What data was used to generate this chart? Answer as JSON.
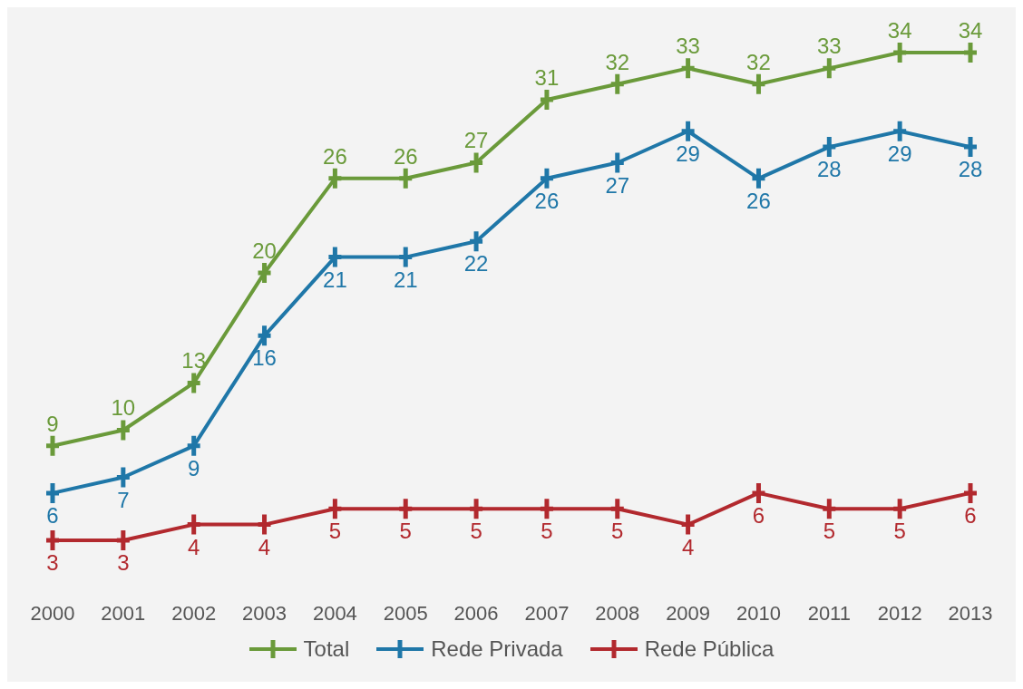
{
  "chart_data": {
    "type": "line",
    "categories": [
      "2000",
      "2001",
      "2002",
      "2003",
      "2004",
      "2005",
      "2006",
      "2007",
      "2008",
      "2009",
      "2010",
      "2011",
      "2012",
      "2013"
    ],
    "series": [
      {
        "name": "Total",
        "color": "#6a9a3a",
        "values": [
          9,
          10,
          13,
          20,
          26,
          26,
          27,
          31,
          32,
          33,
          32,
          33,
          34,
          34
        ]
      },
      {
        "name": "Rede Privada",
        "color": "#1f77a8",
        "values": [
          6,
          7,
          9,
          16,
          21,
          21,
          22,
          26,
          27,
          29,
          26,
          28,
          29,
          28
        ]
      },
      {
        "name": "Rede Pública",
        "color": "#b2292e",
        "values": [
          3,
          3,
          4,
          4,
          5,
          5,
          5,
          5,
          5,
          4,
          6,
          5,
          5,
          6
        ]
      }
    ],
    "data_labels": true,
    "marker": "cross",
    "legend": "bottom",
    "grid": false
  }
}
